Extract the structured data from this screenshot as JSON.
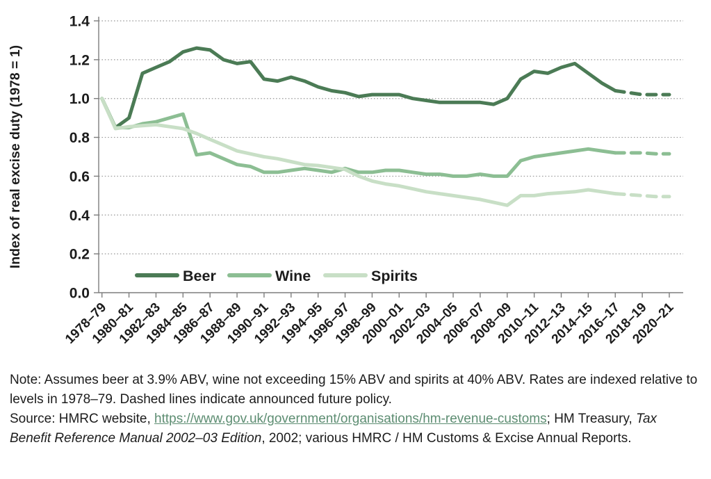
{
  "colors": {
    "beer": "#4b7b55",
    "wine": "#8cbe93",
    "spirits": "#c8dfc6",
    "grid": "#999999",
    "axis": "#7d7d7d",
    "text": "#1c1c1c",
    "link": "#5d8d72"
  },
  "chart_data": {
    "type": "line",
    "title": "",
    "y_axis": {
      "label": "Index of real excise duty (1978 = 1)",
      "range": [
        0,
        1.4
      ],
      "ticks": [
        0.0,
        0.2,
        0.4,
        0.6,
        0.8,
        1.0,
        1.2,
        1.4
      ],
      "tick_labels": [
        "0.0",
        "0.2",
        "0.4",
        "0.6",
        "0.8",
        "1.0",
        "1.2",
        "1.4"
      ],
      "grid": "dotted"
    },
    "x_axis": {
      "tick_labels": [
        "1978–79",
        "1980–81",
        "1982–83",
        "1984–85",
        "1986–87",
        "1988–89",
        "1990–91",
        "1992–93",
        "1994–95",
        "1996–97",
        "1998–99",
        "2000–01",
        "2002–03",
        "2004–05",
        "2006–07",
        "2008–09",
        "2010–11",
        "2012–13",
        "2014–15",
        "2016–17",
        "2018–19",
        "2020–21"
      ],
      "points_per_tick": 2,
      "total_points": 43,
      "first_point_label": "1978–79",
      "last_point_label": "2020–21"
    },
    "dashed_from_index": 38,
    "dashed_meaning": "announced future policy",
    "legend": {
      "position": "inside-bottom-left",
      "entries": [
        "Beer",
        "Wine",
        "Spirits"
      ]
    },
    "series": [
      {
        "name": "Beer",
        "color": "#4b7b55",
        "values": [
          1.0,
          0.85,
          0.9,
          1.13,
          1.16,
          1.19,
          1.24,
          1.26,
          1.25,
          1.2,
          1.18,
          1.19,
          1.1,
          1.09,
          1.11,
          1.09,
          1.06,
          1.04,
          1.03,
          1.01,
          1.02,
          1.02,
          1.02,
          1.0,
          0.99,
          0.98,
          0.98,
          0.98,
          0.98,
          0.97,
          1.0,
          1.1,
          1.14,
          1.13,
          1.16,
          1.18,
          1.13,
          1.08,
          1.04,
          1.03,
          1.02,
          1.02,
          1.02
        ]
      },
      {
        "name": "Wine",
        "color": "#8cbe93",
        "values": [
          1.0,
          0.85,
          0.85,
          0.87,
          0.88,
          0.9,
          0.92,
          0.71,
          0.72,
          0.69,
          0.66,
          0.65,
          0.62,
          0.62,
          0.63,
          0.64,
          0.63,
          0.62,
          0.64,
          0.62,
          0.62,
          0.63,
          0.63,
          0.62,
          0.61,
          0.61,
          0.6,
          0.6,
          0.61,
          0.6,
          0.6,
          0.68,
          0.7,
          0.71,
          0.72,
          0.73,
          0.74,
          0.73,
          0.72,
          0.72,
          0.72,
          0.715,
          0.715
        ]
      },
      {
        "name": "Spirits",
        "color": "#c8dfc6",
        "values": [
          1.0,
          0.845,
          0.855,
          0.86,
          0.865,
          0.855,
          0.845,
          0.82,
          0.79,
          0.76,
          0.73,
          0.715,
          0.7,
          0.69,
          0.675,
          0.66,
          0.655,
          0.645,
          0.635,
          0.6,
          0.575,
          0.56,
          0.55,
          0.535,
          0.52,
          0.51,
          0.5,
          0.49,
          0.48,
          0.465,
          0.45,
          0.5,
          0.5,
          0.51,
          0.515,
          0.52,
          0.53,
          0.52,
          0.51,
          0.505,
          0.5,
          0.495,
          0.495
        ]
      }
    ]
  },
  "notes": {
    "note": "Note: Assumes beer at 3.9% ABV, wine not exceeding 15% ABV and spirits at 40% ABV. Rates are indexed relative to levels in 1978–79. Dashed lines indicate announced future policy.",
    "source_prefix": "Source: HMRC website, ",
    "source_link": "https://www.gov.uk/government/organisations/hm-revenue-customs",
    "source_mid": "; HM Treasury, ",
    "source_italic": "Tax Benefit Reference Manual 2002–03 Edition",
    "source_suffix": ", 2002; various HMRC / HM Customs & Excise Annual Reports."
  }
}
